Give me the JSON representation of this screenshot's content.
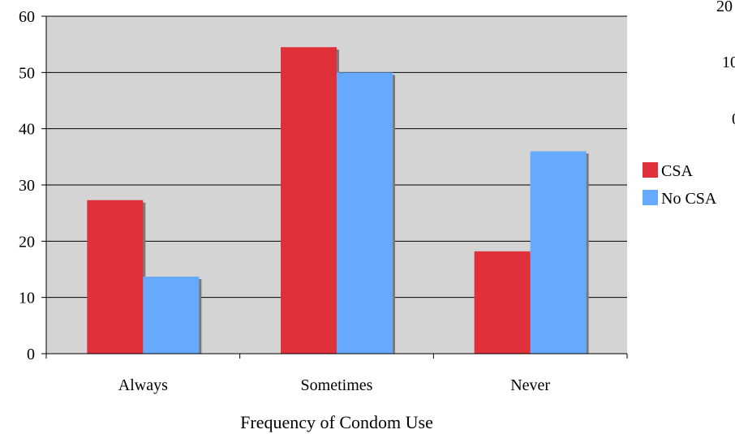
{
  "chart_data": {
    "type": "bar",
    "categories": [
      "Always",
      "Sometimes",
      "Never"
    ],
    "series": [
      {
        "name": "CSA",
        "values": [
          27.3,
          54.5,
          18.2
        ],
        "color": "#e0303a"
      },
      {
        "name": "No CSA",
        "values": [
          13.7,
          50.0,
          36.0
        ],
        "color": "#66aaff"
      }
    ],
    "title": "",
    "xlabel": "Frequency of Condom Use",
    "ylabel": "",
    "ylim": [
      0,
      60
    ],
    "yticks": [
      0,
      10,
      20,
      30,
      40,
      50,
      60
    ],
    "grid": true,
    "plot_background": "#d4d4d4",
    "legend_position": "right",
    "cropped_edge_text": [
      "20",
      "10",
      "0"
    ]
  }
}
